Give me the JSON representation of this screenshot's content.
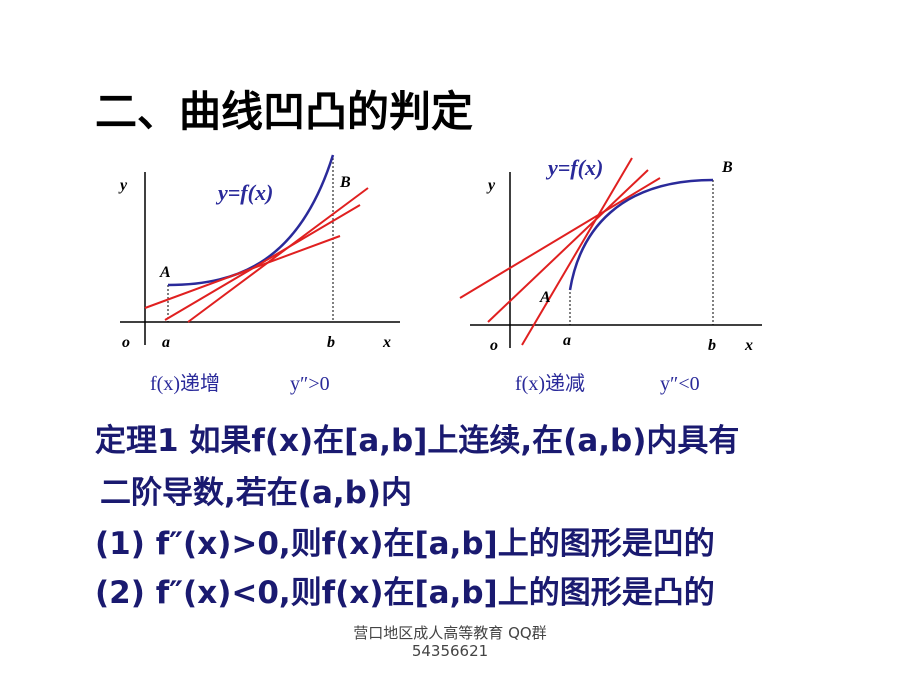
{
  "header": {
    "title": "二、曲线凹凸的判定"
  },
  "figures": [
    {
      "y_axis": "y",
      "origin": "o",
      "x_axis": "x",
      "a": "a",
      "b": "b",
      "point_a": "A",
      "point_b": "B",
      "curve": "y=f(x)",
      "caption_left": "f(x)递增",
      "caption_right": "y″>0"
    },
    {
      "y_axis": "y",
      "origin": "o",
      "x_axis": "x",
      "a": "a",
      "b": "b",
      "point_a": "A",
      "point_b": "B",
      "curve": "y=f(x)",
      "caption_left": "f(x)递减",
      "caption_right": "y″<0"
    }
  ],
  "theorem": {
    "lines": [
      "定理1 如果f(x)在[a,b]上连续,在(a,b)内具有",
      "二阶导数,若在(a,b)内",
      "(1) f″(x)>0,则f(x)在[a,b]上的图形是凹的",
      "(2) f″(x)<0,则f(x)在[a,b]上的图形是凸的"
    ]
  },
  "footer": {
    "lines": [
      "营口地区成人高等教育 QQ群",
      "54356621"
    ]
  }
}
